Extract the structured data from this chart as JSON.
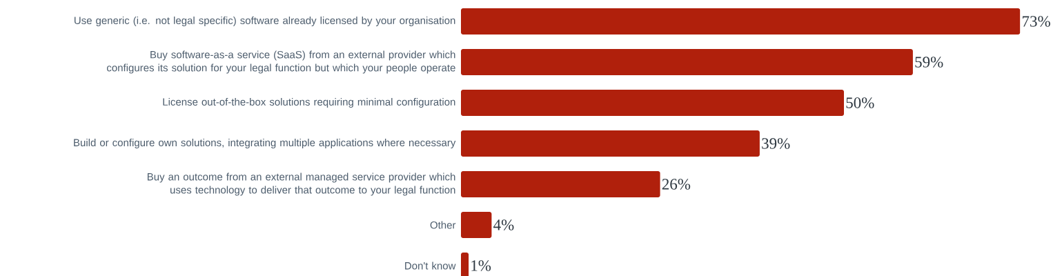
{
  "chart_data": {
    "type": "bar",
    "orientation": "horizontal",
    "categories": [
      "Use generic (i.e. not legal specific) software already licensed by your organisation",
      "Buy software-as-a service (SaaS) from an external provider which configures its solution for your legal function but which your people operate",
      "License out-of-the-box solutions requiring minimal configuration",
      "Build or configure own solutions, integrating multiple applications where necessary",
      "Buy an outcome from an external managed service provider which uses technology to deliver that outcome to your legal function",
      "Other",
      "Don't know"
    ],
    "values": [
      73,
      59,
      50,
      39,
      26,
      4,
      1
    ],
    "value_labels": [
      "73%",
      "59%",
      "50%",
      "39%",
      "26%",
      "4%",
      "1%"
    ],
    "color": "#b0200c",
    "tick_labels": "y"
  }
}
